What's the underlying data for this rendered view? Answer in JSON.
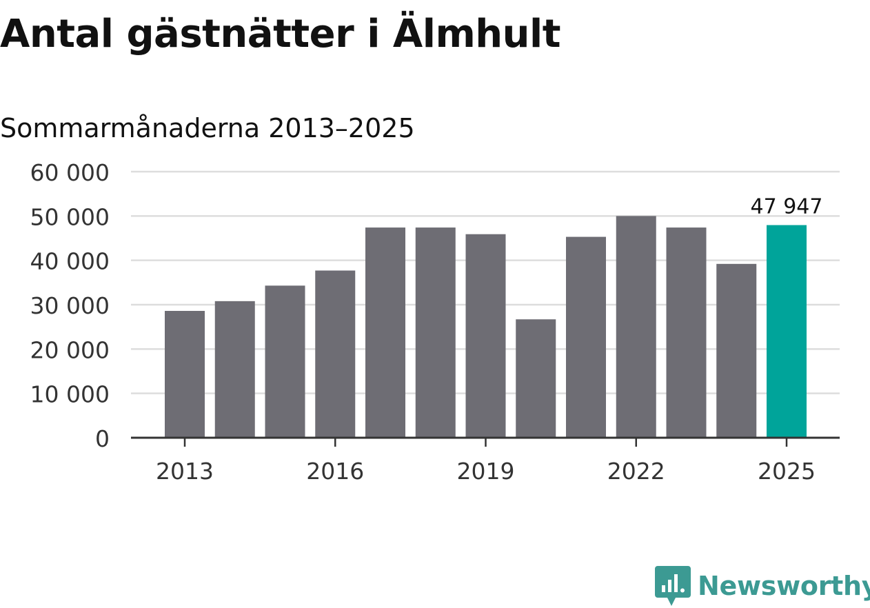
{
  "title": "Antal gästnätter i Älmhult",
  "subtitle": "Sommarmånaderna 2013–2025",
  "brand": {
    "name": "Newsworthy",
    "icon": "newsworthy-logo-icon",
    "color": "#3c9a93"
  },
  "colors": {
    "bar": "#6e6d74",
    "highlight": "#00a49a",
    "grid": "#dddddd",
    "axis": "#333333",
    "text": "#333333"
  },
  "chart_data": {
    "type": "bar",
    "categories": [
      "2013",
      "2014",
      "2015",
      "2016",
      "2017",
      "2018",
      "2019",
      "2020",
      "2021",
      "2022",
      "2023",
      "2024",
      "2025"
    ],
    "values": [
      28600,
      30800,
      34300,
      37700,
      47400,
      47400,
      45900,
      26700,
      45300,
      50000,
      47400,
      39200,
      47947
    ],
    "highlight_index": 12,
    "data_labels": [
      {
        "index": 12,
        "text": "47 947"
      }
    ],
    "x_tick_labels": [
      "2013",
      "2016",
      "2019",
      "2022",
      "2025"
    ],
    "y_ticks": [
      0,
      10000,
      20000,
      30000,
      40000,
      50000,
      60000
    ],
    "y_tick_labels": [
      "0",
      "10 000",
      "20 000",
      "30 000",
      "40 000",
      "50 000",
      "60 000"
    ],
    "ylim": [
      0,
      60000
    ],
    "grid": true,
    "legend": "none"
  }
}
